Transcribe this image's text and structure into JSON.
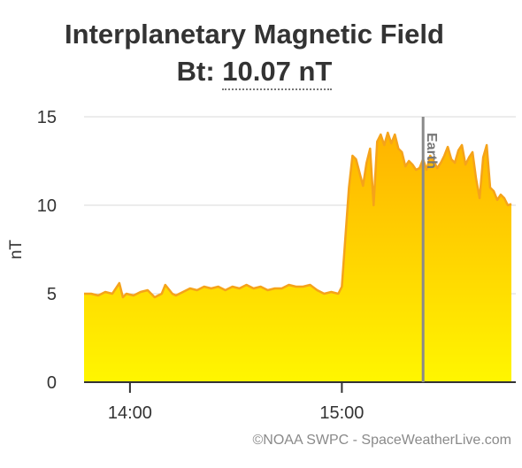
{
  "header": {
    "title": "Interplanetary Magnetic Field",
    "subtitle_prefix": "Bt: ",
    "subtitle_value": "10.07 nT"
  },
  "credit": "©NOAA SWPC - SpaceWeatherLive.com",
  "colors": {
    "line": "#f5a31a",
    "fill_top": "#ffb300",
    "fill_bottom": "#fff600",
    "grid": "#d9d9d9",
    "axis": "#333333",
    "earth_line": "#8a8a8a"
  },
  "chart_data": {
    "type": "area",
    "ylabel": "nT",
    "xlabel": "",
    "ylim": [
      0,
      15
    ],
    "xlim": [
      "13:47",
      "15:48"
    ],
    "y_ticks": [
      0,
      5,
      10,
      15
    ],
    "x_ticks": [
      "14:00",
      "15:00"
    ],
    "grid": true,
    "legend": "none",
    "annotation": {
      "label": "Earth",
      "x": "15:23"
    },
    "series": [
      {
        "x": [
          "13:47",
          "13:49",
          "13:51",
          "13:53",
          "13:55",
          "13:57",
          "13:58",
          "13:59",
          "14:01",
          "14:03",
          "14:05",
          "14:07",
          "14:09",
          "14:10",
          "14:12",
          "14:13",
          "14:15",
          "14:17",
          "14:19",
          "14:21",
          "14:23",
          "14:25",
          "14:27",
          "14:29",
          "14:31",
          "14:33",
          "14:35",
          "14:37",
          "14:39",
          "14:41",
          "14:43",
          "14:45",
          "14:47",
          "14:49",
          "14:51",
          "14:53",
          "14:55",
          "14:57",
          "14:59",
          "15:00",
          "15:02",
          "15:03",
          "15:04",
          "15:06",
          "15:07",
          "15:08",
          "15:09",
          "15:10",
          "15:11",
          "15:12",
          "15:13",
          "15:14",
          "15:15",
          "15:16",
          "15:17",
          "15:18",
          "15:19",
          "15:20",
          "15:21",
          "15:22",
          "15:23",
          "15:24",
          "15:25",
          "15:26",
          "15:27",
          "15:28",
          "15:29",
          "15:30",
          "15:31",
          "15:32",
          "15:33",
          "15:34",
          "15:35",
          "15:36",
          "15:37",
          "15:38",
          "15:39",
          "15:40",
          "15:41",
          "15:42",
          "15:43",
          "15:44",
          "15:45",
          "15:46",
          "15:47",
          "15:48"
        ],
        "values": [
          5.0,
          5.0,
          4.9,
          5.1,
          5.0,
          5.6,
          4.8,
          5.0,
          4.9,
          5.1,
          5.2,
          4.8,
          5.0,
          5.5,
          5.0,
          4.9,
          5.1,
          5.3,
          5.2,
          5.4,
          5.3,
          5.4,
          5.2,
          5.4,
          5.3,
          5.5,
          5.3,
          5.4,
          5.2,
          5.3,
          5.3,
          5.5,
          5.4,
          5.4,
          5.5,
          5.2,
          5.0,
          5.1,
          5.0,
          5.4,
          11.0,
          12.8,
          12.6,
          11.1,
          12.4,
          13.2,
          10.0,
          13.6,
          14.0,
          13.4,
          14.1,
          13.5,
          14.0,
          13.2,
          13.0,
          12.2,
          12.5,
          12.3,
          12.0,
          12.1,
          12.6,
          12.0,
          12.8,
          12.5,
          12.1,
          12.4,
          12.8,
          13.3,
          12.6,
          12.4,
          13.1,
          13.4,
          12.3,
          12.7,
          13.0,
          11.5,
          10.4,
          12.7,
          13.4,
          11.0,
          10.8,
          10.3,
          10.6,
          10.4,
          10.0,
          10.07
        ]
      }
    ]
  }
}
